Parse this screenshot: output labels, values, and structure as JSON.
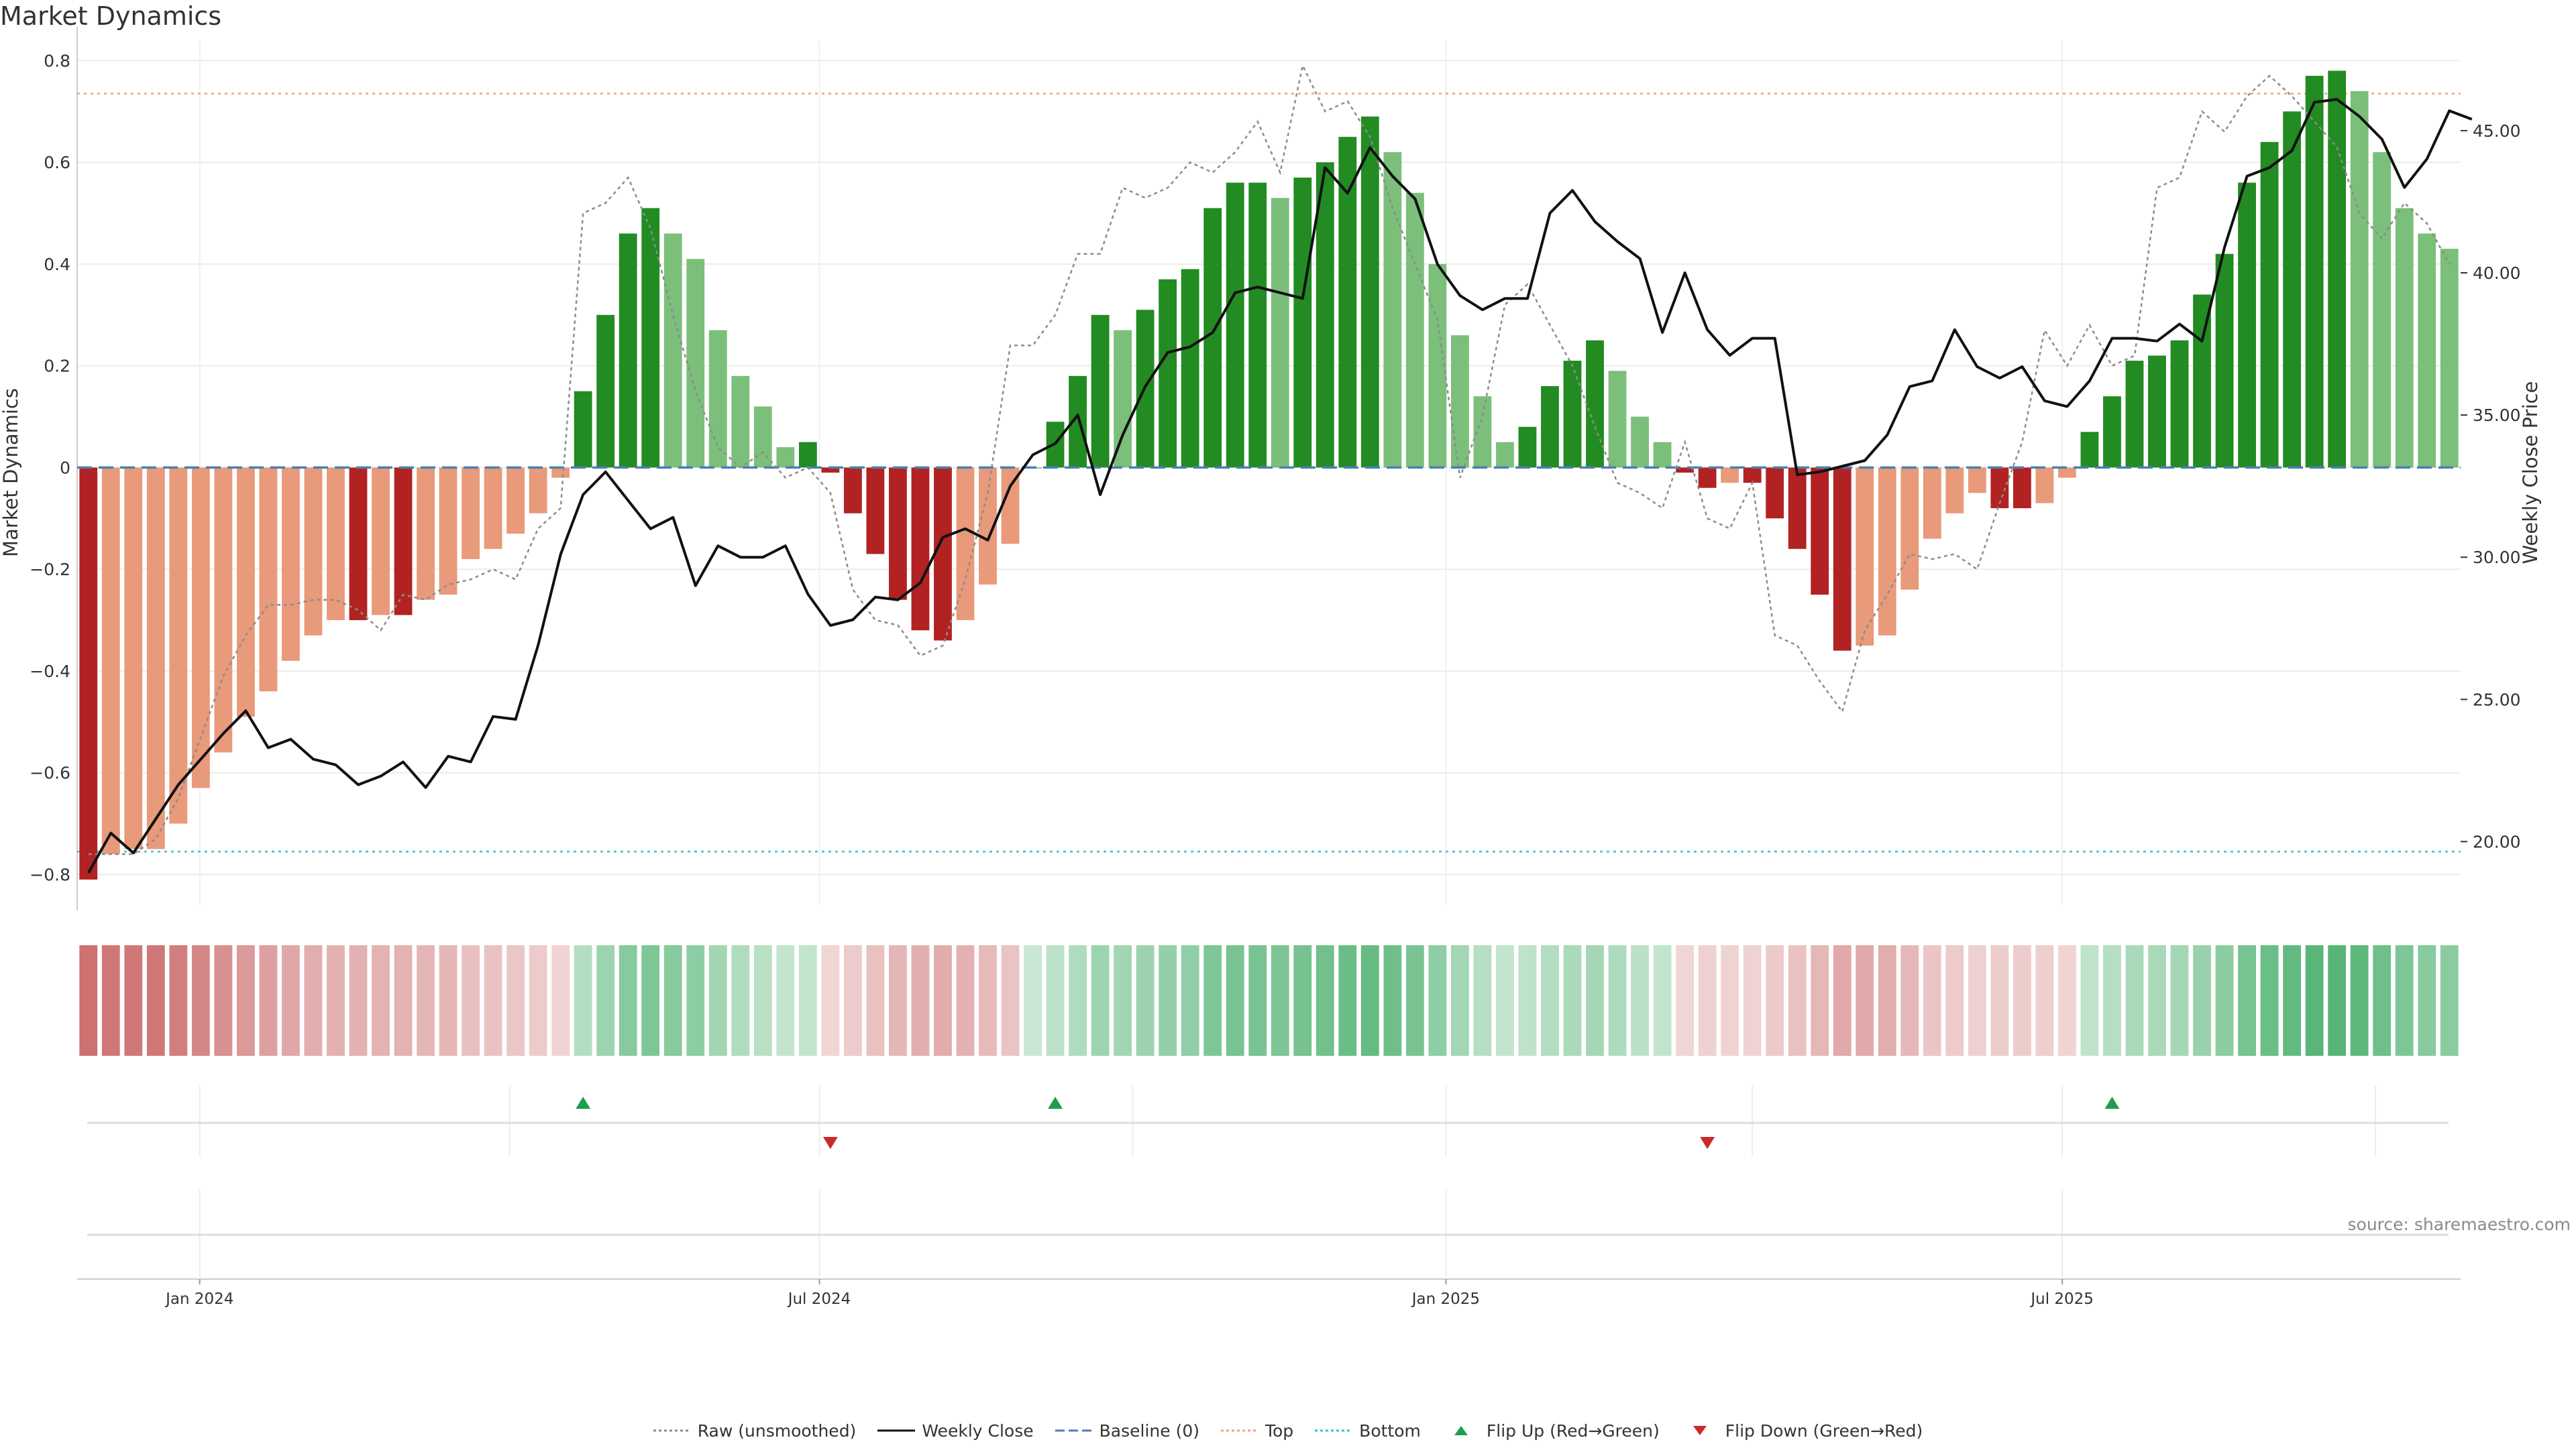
{
  "title": "Market Dynamics",
  "source": "source: sharemaestro.com",
  "colors": {
    "strong_green": "#228b22",
    "light_green": "#7bbf7b",
    "strong_red": "#b22222",
    "light_red": "#e89a7a",
    "close_line": "#111111",
    "raw_line": "#8c8c8c",
    "baseline": "#4a7fb5",
    "top_line": "#f0a080",
    "bottom_line": "#40c0c0",
    "flip_up": "#1e9e4a",
    "flip_down": "#cc2a2a"
  },
  "legend": [
    {
      "label": "Raw (unsmoothed)",
      "sym": "dotted-line",
      "color": "#8c8c8c"
    },
    {
      "label": "Weekly Close",
      "sym": "solid-line",
      "color": "#111111"
    },
    {
      "label": "Baseline (0)",
      "sym": "dashed-line",
      "color": "#4a7fb5"
    },
    {
      "label": "Top",
      "sym": "dotted-line",
      "color": "#f0a080"
    },
    {
      "label": "Bottom",
      "sym": "dotted-line",
      "color": "#40c0c0"
    },
    {
      "label": "Flip Up (Red→Green)",
      "sym": "triangle-up",
      "color": "#1e9e4a"
    },
    {
      "label": "Flip Down (Green→Red)",
      "sym": "triangle-down",
      "color": "#cc2a2a"
    }
  ],
  "chart_data": {
    "type": "bar",
    "title": "Market Dynamics",
    "ylabel": "Market Dynamics",
    "y2label": "Weekly Close Price",
    "ylim": [
      -0.86,
      0.84
    ],
    "y2lim": [
      17.77,
      48.18
    ],
    "yticks": [
      "0.8",
      "0.6",
      "0.4",
      "0.2",
      "0",
      "−0.2",
      "−0.4",
      "−0.6",
      "−0.8"
    ],
    "yticks_values": [
      0.8,
      0.6,
      0.4,
      0.2,
      0,
      -0.2,
      -0.4,
      -0.6,
      -0.8
    ],
    "y2ticks": [
      "45.00",
      "40.00",
      "35.00",
      "30.00",
      "25.00",
      "20.00"
    ],
    "y2ticks_values": [
      45,
      40,
      35,
      30,
      25,
      20
    ],
    "x_start": "2023-11-26",
    "x_end": "2025-10-26",
    "xticks": [
      {
        "label": "Jan 2024",
        "date": "2024-01-01"
      },
      {
        "label": "Jul 2024",
        "date": "2024-07-01"
      },
      {
        "label": "Jan 2025",
        "date": "2025-01-01"
      },
      {
        "label": "Jul 2025",
        "date": "2025-07-01"
      }
    ],
    "grid": true,
    "top_level": 0.735,
    "bottom_level": -0.755,
    "baseline": 0,
    "momentum": [
      -0.81,
      -0.76,
      -0.75,
      -0.75,
      -0.7,
      -0.63,
      -0.56,
      -0.49,
      -0.44,
      -0.38,
      -0.33,
      -0.3,
      -0.3,
      -0.29,
      -0.29,
      -0.26,
      -0.25,
      -0.18,
      -0.16,
      -0.13,
      -0.09,
      -0.02,
      0.15,
      0.3,
      0.46,
      0.51,
      0.46,
      0.41,
      0.27,
      0.18,
      0.12,
      0.04,
      0.05,
      -0.01,
      -0.09,
      -0.17,
      -0.26,
      -0.32,
      -0.34,
      -0.3,
      -0.23,
      -0.15,
      0.0,
      0.09,
      0.18,
      0.3,
      0.27,
      0.31,
      0.37,
      0.39,
      0.51,
      0.56,
      0.56,
      0.53,
      0.57,
      0.6,
      0.65,
      0.69,
      0.62,
      0.54,
      0.4,
      0.26,
      0.14,
      0.05,
      0.08,
      0.16,
      0.21,
      0.25,
      0.19,
      0.1,
      0.05,
      -0.01,
      -0.04,
      -0.03,
      -0.03,
      -0.1,
      -0.16,
      -0.25,
      -0.36,
      -0.35,
      -0.33,
      -0.24,
      -0.14,
      -0.09,
      -0.05,
      -0.08,
      -0.08,
      -0.07,
      -0.02,
      0.07,
      0.14,
      0.21,
      0.22,
      0.25,
      0.34,
      0.42,
      0.56,
      0.64,
      0.7,
      0.77,
      0.78,
      0.74,
      0.62,
      0.51,
      0.46,
      0.43
    ],
    "strength": [
      "S",
      "L",
      "L",
      "L",
      "L",
      "L",
      "L",
      "L",
      "L",
      "L",
      "L",
      "L",
      "S",
      "L",
      "S",
      "L",
      "L",
      "L",
      "L",
      "L",
      "L",
      "L",
      "S",
      "S",
      "S",
      "S",
      "L",
      "L",
      "L",
      "L",
      "L",
      "L",
      "S",
      "S",
      "S",
      "S",
      "S",
      "S",
      "S",
      "L",
      "L",
      "L",
      "L",
      "S",
      "S",
      "S",
      "L",
      "S",
      "S",
      "S",
      "S",
      "S",
      "S",
      "L",
      "S",
      "S",
      "S",
      "S",
      "L",
      "L",
      "L",
      "L",
      "L",
      "L",
      "S",
      "S",
      "S",
      "S",
      "L",
      "L",
      "L",
      "S",
      "S",
      "L",
      "S",
      "S",
      "S",
      "S",
      "S",
      "L",
      "L",
      "L",
      "L",
      "L",
      "L",
      "S",
      "S",
      "L",
      "L",
      "S",
      "S",
      "S",
      "S",
      "S",
      "S",
      "S",
      "S",
      "S",
      "S",
      "S",
      "S",
      "L",
      "L",
      "L",
      "L",
      "L"
    ],
    "raw": [
      -0.76,
      -0.76,
      -0.76,
      -0.73,
      -0.65,
      -0.53,
      -0.41,
      -0.33,
      -0.27,
      -0.27,
      -0.26,
      -0.26,
      -0.28,
      -0.32,
      -0.25,
      -0.26,
      -0.23,
      -0.22,
      -0.2,
      -0.22,
      -0.12,
      -0.08,
      0.5,
      0.52,
      0.57,
      0.47,
      0.3,
      0.15,
      0.04,
      0.0,
      0.03,
      -0.02,
      0.0,
      -0.05,
      -0.24,
      -0.3,
      -0.31,
      -0.37,
      -0.35,
      -0.22,
      -0.05,
      0.24,
      0.24,
      0.3,
      0.42,
      0.42,
      0.55,
      0.53,
      0.55,
      0.6,
      0.58,
      0.62,
      0.68,
      0.58,
      0.79,
      0.7,
      0.72,
      0.65,
      0.51,
      0.4,
      0.29,
      -0.02,
      0.1,
      0.32,
      0.36,
      0.28,
      0.2,
      0.08,
      -0.03,
      -0.05,
      -0.08,
      0.05,
      -0.1,
      -0.12,
      -0.03,
      -0.33,
      -0.35,
      -0.42,
      -0.48,
      -0.32,
      -0.25,
      -0.17,
      -0.18,
      -0.17,
      -0.2,
      -0.07,
      0.05,
      0.27,
      0.2,
      0.28,
      0.2,
      0.22,
      0.55,
      0.57,
      0.7,
      0.66,
      0.73,
      0.77,
      0.73,
      0.68,
      0.63,
      0.5,
      0.45,
      0.52,
      0.48,
      0.4
    ],
    "close": [
      18.9,
      20.3,
      19.6,
      20.8,
      22.0,
      22.9,
      23.8,
      24.6,
      23.3,
      23.6,
      22.9,
      22.7,
      22.0,
      22.3,
      22.8,
      21.9,
      23.0,
      22.8,
      24.4,
      24.3,
      26.9,
      30.1,
      32.2,
      33.0,
      32.0,
      31.0,
      31.4,
      29.0,
      30.4,
      30.0,
      30.0,
      30.4,
      28.7,
      27.6,
      27.8,
      28.6,
      28.5,
      29.1,
      30.7,
      31.0,
      30.6,
      32.5,
      33.6,
      34.0,
      35.0,
      32.2,
      34.3,
      36.0,
      37.2,
      37.4,
      37.9,
      39.3,
      39.5,
      39.3,
      39.1,
      43.7,
      42.8,
      44.4,
      43.4,
      42.6,
      40.3,
      39.2,
      38.7,
      39.1,
      39.1,
      42.1,
      42.9,
      41.8,
      41.1,
      40.5,
      37.9,
      40.0,
      38.0,
      37.1,
      37.7,
      37.7,
      32.9,
      33.0,
      33.2,
      33.4,
      34.3,
      36.0,
      36.2,
      38.0,
      36.7,
      36.3,
      36.7,
      35.5,
      35.3,
      36.2,
      37.7,
      37.7,
      37.6,
      38.2,
      37.6,
      40.9,
      43.4,
      43.7,
      44.3,
      46.0,
      46.1,
      45.5,
      44.7,
      43.0,
      44.0,
      45.7,
      45.4
    ],
    "ribbon": [
      -0.81,
      -0.76,
      -0.75,
      -0.75,
      -0.7,
      -0.63,
      -0.56,
      -0.49,
      -0.44,
      -0.38,
      -0.33,
      -0.3,
      -0.3,
      -0.29,
      -0.29,
      -0.26,
      -0.25,
      -0.18,
      -0.16,
      -0.13,
      -0.09,
      -0.02,
      0.15,
      0.3,
      0.46,
      0.51,
      0.46,
      0.41,
      0.27,
      0.18,
      0.12,
      0.04,
      0.05,
      -0.01,
      -0.09,
      -0.17,
      -0.26,
      -0.32,
      -0.34,
      -0.3,
      -0.23,
      -0.15,
      0.0,
      0.09,
      0.18,
      0.3,
      0.27,
      0.31,
      0.37,
      0.39,
      0.51,
      0.56,
      0.56,
      0.53,
      0.57,
      0.6,
      0.65,
      0.69,
      0.62,
      0.54,
      0.4,
      0.26,
      0.14,
      0.05,
      0.08,
      0.16,
      0.21,
      0.25,
      0.19,
      0.1,
      0.05,
      -0.01,
      -0.04,
      -0.03,
      -0.03,
      -0.1,
      -0.16,
      -0.25,
      -0.36,
      -0.35,
      -0.33,
      -0.24,
      -0.14,
      -0.09,
      -0.05,
      -0.08,
      -0.08,
      -0.07,
      -0.02,
      0.07,
      0.14,
      0.21,
      0.22,
      0.25,
      0.34,
      0.42,
      0.56,
      0.64,
      0.7,
      0.77,
      0.78,
      0.74,
      0.62,
      0.51,
      0.46,
      0.43
    ],
    "flips_up": [
      22,
      43,
      90
    ],
    "flips_down": [
      33,
      72
    ]
  }
}
